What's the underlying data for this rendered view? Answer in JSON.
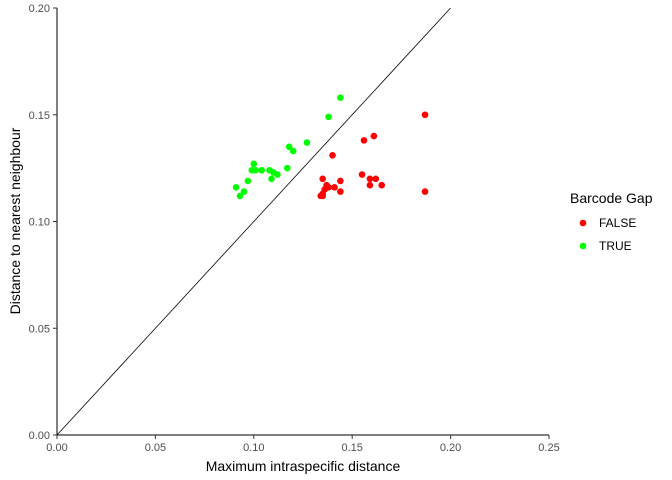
{
  "chart_data": {
    "type": "scatter",
    "xlabel": "Maximum intraspecific distance",
    "ylabel": "Distance to nearest neighbour",
    "xlim": [
      0,
      0.25
    ],
    "ylim": [
      0,
      0.2
    ],
    "xticks": [
      "0.00",
      "0.05",
      "0.10",
      "0.15",
      "0.20",
      "0.25"
    ],
    "yticks": [
      "0.00",
      "0.05",
      "0.10",
      "0.15",
      "0.20"
    ],
    "reference_line": {
      "type": "y=x",
      "from": [
        0,
        0
      ],
      "to": [
        0.2,
        0.2
      ],
      "color": "#000000"
    },
    "grid": false,
    "legend": {
      "title": "Barcode Gap",
      "position": "right",
      "entries": [
        {
          "label": "FALSE",
          "color": "#ff0000"
        },
        {
          "label": "TRUE",
          "color": "#00ff00"
        }
      ]
    },
    "series": [
      {
        "name": "FALSE",
        "color": "#ff0000",
        "points": [
          [
            0.187,
            0.15
          ],
          [
            0.187,
            0.114
          ],
          [
            0.161,
            0.14
          ],
          [
            0.156,
            0.138
          ],
          [
            0.14,
            0.131
          ],
          [
            0.155,
            0.122
          ],
          [
            0.159,
            0.12
          ],
          [
            0.162,
            0.12
          ],
          [
            0.159,
            0.117
          ],
          [
            0.165,
            0.117
          ],
          [
            0.135,
            0.12
          ],
          [
            0.137,
            0.117
          ],
          [
            0.138,
            0.116
          ],
          [
            0.141,
            0.116
          ],
          [
            0.144,
            0.119
          ],
          [
            0.144,
            0.114
          ],
          [
            0.136,
            0.115
          ],
          [
            0.135,
            0.113
          ],
          [
            0.134,
            0.112
          ],
          [
            0.135,
            0.112
          ]
        ]
      },
      {
        "name": "TRUE",
        "color": "#00ff00",
        "points": [
          [
            0.144,
            0.158
          ],
          [
            0.138,
            0.149
          ],
          [
            0.127,
            0.137
          ],
          [
            0.118,
            0.135
          ],
          [
            0.12,
            0.133
          ],
          [
            0.117,
            0.125
          ],
          [
            0.11,
            0.123
          ],
          [
            0.108,
            0.124
          ],
          [
            0.109,
            0.12
          ],
          [
            0.104,
            0.124
          ],
          [
            0.101,
            0.124
          ],
          [
            0.1,
            0.127
          ],
          [
            0.099,
            0.124
          ],
          [
            0.097,
            0.119
          ],
          [
            0.091,
            0.116
          ],
          [
            0.095,
            0.114
          ],
          [
            0.093,
            0.112
          ],
          [
            0.112,
            0.122
          ]
        ]
      }
    ]
  }
}
